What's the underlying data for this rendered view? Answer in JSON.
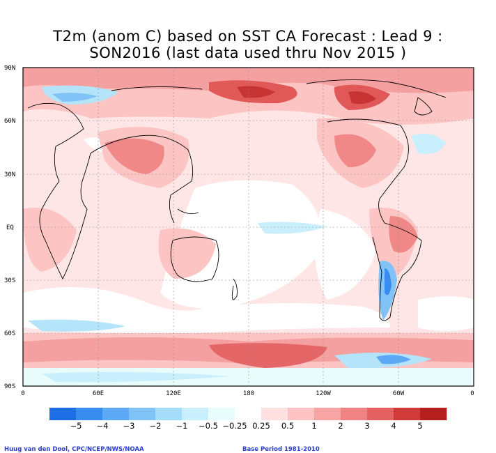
{
  "title_line1": "T2m (anom C) based on SST CA Forecast : Lead 9 :",
  "title_line2": "SON2016 (last data used thru Nov 2015 )",
  "lat_labels": [
    "90N",
    "60N",
    "30N",
    "EQ",
    "30S",
    "60S",
    "90S"
  ],
  "lon_labels": [
    "0",
    "60E",
    "120E",
    "180",
    "120W",
    "60W",
    "0"
  ],
  "colorbar": {
    "colors": [
      "#1e6fe6",
      "#3a8df0",
      "#5da9f5",
      "#82c3f7",
      "#a6dcfa",
      "#c9effc",
      "#e8fcfc",
      "#ffffff",
      "#ffe0e0",
      "#fdc2c2",
      "#f7a4a4",
      "#f08383",
      "#e56161",
      "#d23a3a",
      "#b51f1f"
    ],
    "labels": [
      "−5",
      "−4",
      "−3",
      "−2",
      "−1",
      "−0.5",
      "−0.25",
      "0.25",
      "0.5",
      "1",
      "2",
      "3",
      "4",
      "5"
    ]
  },
  "footer_left": "Huug van den Dool, CPC/NCEP/NWS/NOAA",
  "footer_right": "Base Period 1981-2010"
}
